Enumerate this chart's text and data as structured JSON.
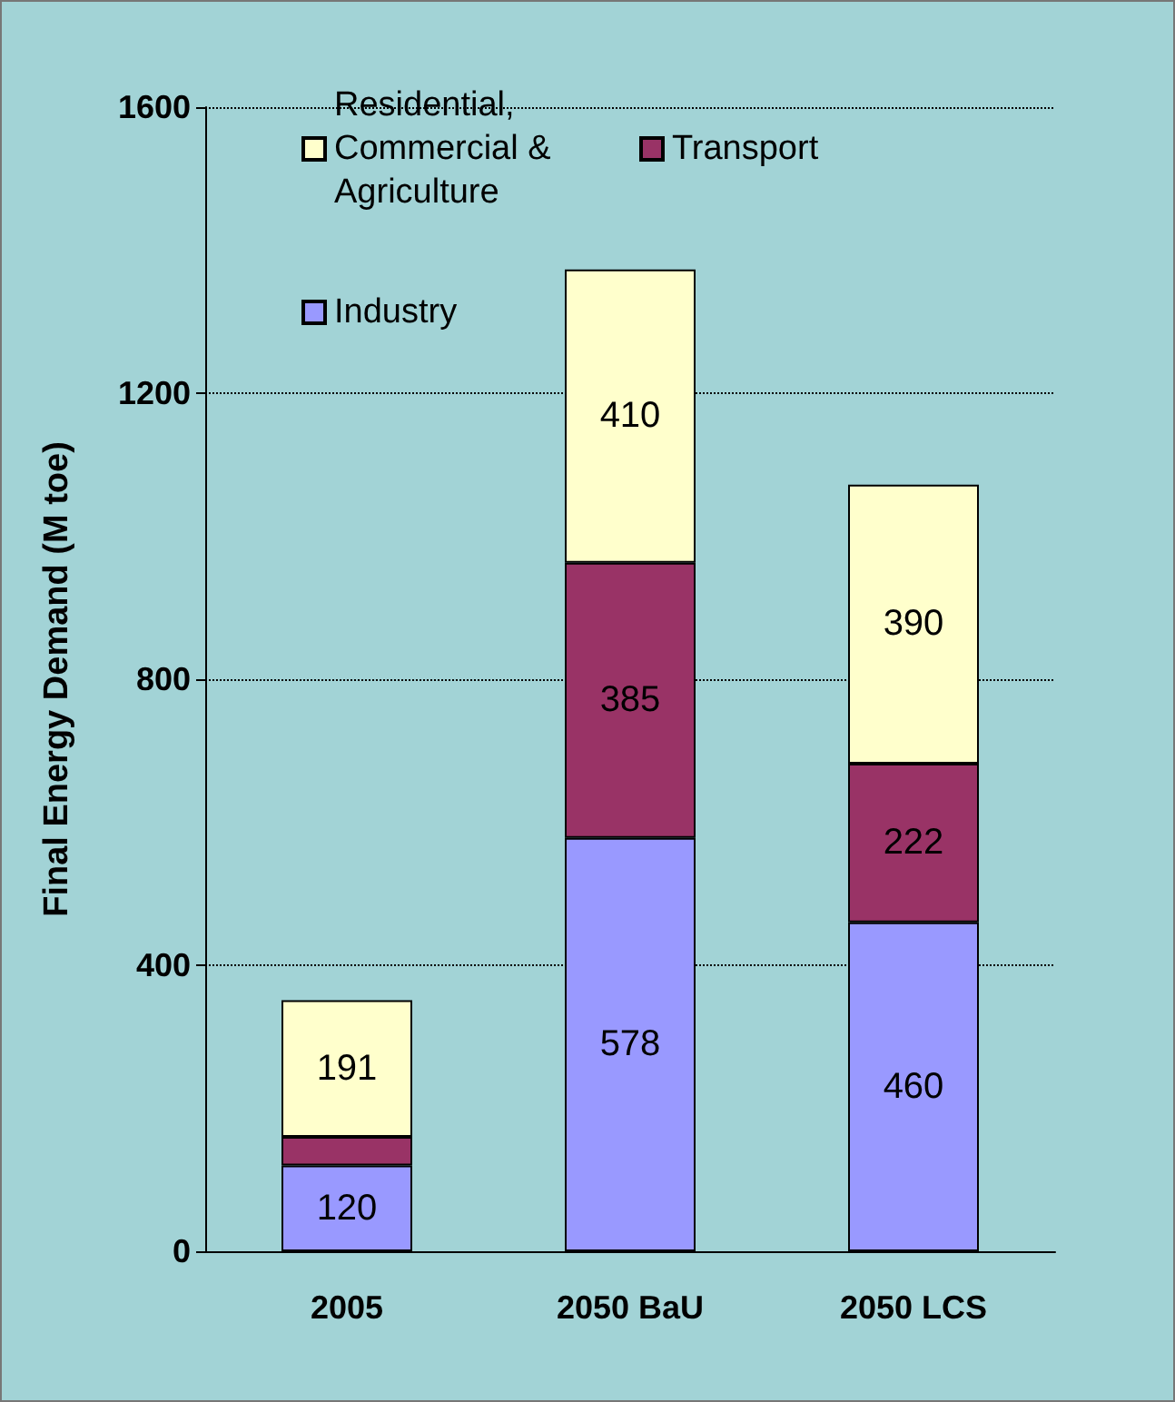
{
  "chart_data": {
    "type": "bar",
    "stacked": true,
    "ylabel": "Final Energy Demand (M toe)",
    "categories": [
      "2005",
      "2050 BaU",
      "2050 LCS"
    ],
    "series": [
      {
        "name": "Industry",
        "color": "#9999ff",
        "values": [
          120,
          578,
          460
        ],
        "value_labels": [
          "120",
          "578",
          "460"
        ]
      },
      {
        "name": "Transport",
        "color": "#993366",
        "values": [
          40,
          385,
          222
        ],
        "value_labels": [
          null,
          "385",
          "222"
        ]
      },
      {
        "name": "Residential, Commercial & Agriculture",
        "color": "#ffffcc",
        "values": [
          191,
          410,
          390
        ],
        "value_labels": [
          "191",
          "410",
          "390"
        ]
      }
    ],
    "ylim": [
      0,
      1600
    ],
    "yticks": [
      0,
      400,
      800,
      1200,
      1600
    ],
    "grid": "y",
    "legend": "top left"
  }
}
